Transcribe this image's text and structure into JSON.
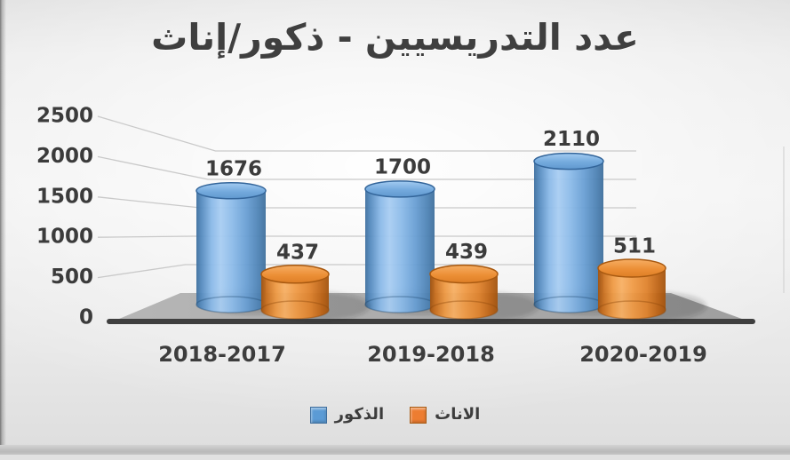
{
  "chart_data": {
    "type": "bar",
    "style": "3d-cylinder",
    "title": "عدد التدريسيين - ذكور/إناث",
    "categories": [
      "2018-2017",
      "2019-2018",
      "2020-2019"
    ],
    "series": [
      {
        "name": "الذكور",
        "color": "#5b9bd5",
        "values": [
          1676,
          1700,
          2110
        ]
      },
      {
        "name": "الاناث",
        "color": "#ed7d31",
        "values": [
          437,
          439,
          511
        ]
      }
    ],
    "value_labels": [
      [
        "1676",
        "1700",
        "2110"
      ],
      [
        "437",
        "439",
        "511"
      ]
    ],
    "y_ticks": [
      0,
      500,
      1000,
      1500,
      2000,
      2500
    ],
    "ylim": [
      0,
      2500
    ],
    "grid": true,
    "legend_position": "bottom",
    "text_color": "#3b3b3b",
    "gridline_color": "#c9c9c9",
    "floor_color": "#ababab",
    "axis_line_color": "#3f3f3f"
  }
}
